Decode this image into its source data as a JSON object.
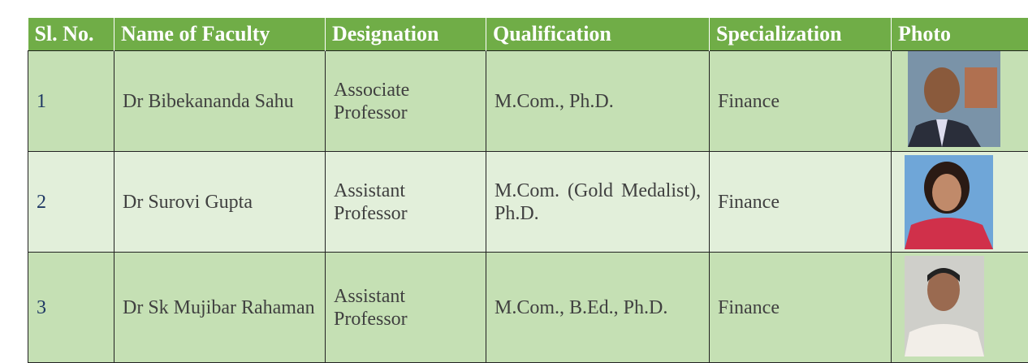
{
  "table": {
    "header": [
      "Sl. No.",
      "Name of Faculty",
      "Designation",
      "Qualification",
      "Specialization",
      "Photo"
    ],
    "rows": [
      [
        "1",
        "Dr Bibekananda Sahu",
        "Associate Professor",
        "M.Com., Ph.D.",
        "Finance"
      ],
      [
        "2",
        "Dr Surovi Gupta",
        "Assistant Professor",
        "M.Com. (Gold Medalist), Ph.D.",
        "Finance"
      ],
      [
        "3",
        "Dr Sk Mujibar Rahaman",
        "Assistant Professor",
        "M.Com., B.Ed., Ph.D.",
        "Finance"
      ]
    ]
  }
}
